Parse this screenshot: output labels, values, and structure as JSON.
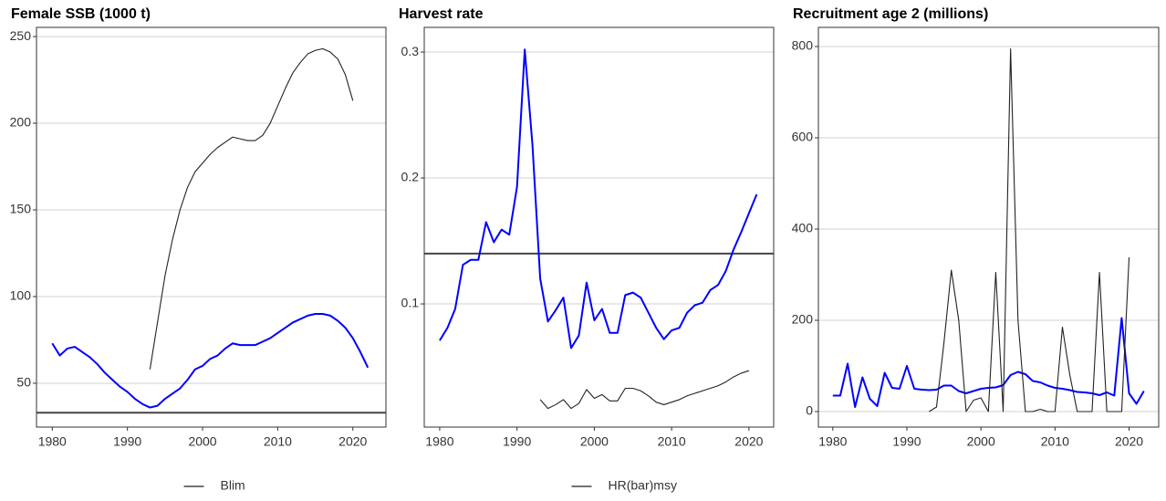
{
  "chart_data": [
    {
      "type": "line",
      "title": "Female SSB (1000 t)",
      "xlim": [
        1977.9,
        2024.4
      ],
      "xticks": [
        1980,
        1990,
        2000,
        2010,
        2020
      ],
      "ylim": [
        24.7,
        255.3
      ],
      "yticks": [
        50,
        100,
        150,
        200,
        250
      ],
      "grid": true,
      "series": [
        {
          "color": "#0000ff",
          "x": [
            1980,
            1981,
            1982,
            1983,
            1984,
            1985,
            1986,
            1987,
            1988,
            1989,
            1990,
            1991,
            1992,
            1993,
            1994,
            1995,
            1996,
            1997,
            1998,
            1999,
            2000,
            2001,
            2002,
            2003,
            2004,
            2005,
            2006,
            2007,
            2008,
            2009,
            2010,
            2011,
            2012,
            2013,
            2014,
            2015,
            2016,
            2017,
            2018,
            2019,
            2020,
            2021,
            2022
          ],
          "values": [
            73,
            66,
            70,
            71,
            68,
            65,
            61,
            56,
            52,
            48,
            45,
            41,
            38,
            36,
            37,
            41,
            44,
            47,
            52,
            58,
            60,
            64,
            66,
            70,
            73,
            72,
            72,
            72,
            74,
            76,
            79,
            82,
            85,
            87,
            89,
            90,
            90,
            89,
            86,
            82,
            76,
            68,
            59
          ]
        },
        {
          "color": "#222222",
          "x": [
            1993,
            1994,
            1995,
            1996,
            1997,
            1998,
            1999,
            2000,
            2001,
            2002,
            2003,
            2004,
            2005,
            2006,
            2007,
            2008,
            2009,
            2010,
            2011,
            2012,
            2013,
            2014,
            2015,
            2016,
            2017,
            2018,
            2019,
            2020
          ],
          "values": [
            58,
            85,
            112,
            133,
            150,
            163,
            172,
            177,
            182,
            186,
            189,
            192,
            191,
            190,
            190,
            193,
            200,
            210,
            220,
            229,
            235,
            240,
            242,
            243,
            241,
            237,
            228,
            213
          ]
        }
      ],
      "hline": {
        "name": "Blim",
        "value": 33,
        "color": "#444444"
      }
    },
    {
      "type": "line",
      "title": "Harvest rate",
      "xlim": [
        1978.0,
        2023.2
      ],
      "xticks": [
        1980,
        1990,
        2000,
        2010,
        2020
      ],
      "ylim": [
        0.0022,
        0.3196
      ],
      "yticks": [
        0.1,
        0.2,
        0.3
      ],
      "grid": true,
      "series": [
        {
          "color": "#0000ff",
          "x": [
            1980,
            1981,
            1982,
            1983,
            1984,
            1985,
            1986,
            1987,
            1988,
            1989,
            1990,
            1991,
            1992,
            1993,
            1994,
            1995,
            1996,
            1997,
            1998,
            1999,
            2000,
            2001,
            2002,
            2003,
            2004,
            2005,
            2006,
            2007,
            2008,
            2009,
            2010,
            2011,
            2012,
            2013,
            2014,
            2015,
            2016,
            2017,
            2018,
            2019,
            2020,
            2021
          ],
          "values": [
            0.071,
            0.081,
            0.096,
            0.131,
            0.135,
            0.135,
            0.165,
            0.149,
            0.159,
            0.155,
            0.193,
            0.302,
            0.226,
            0.12,
            0.086,
            0.095,
            0.105,
            0.065,
            0.075,
            0.117,
            0.087,
            0.096,
            0.077,
            0.077,
            0.107,
            0.109,
            0.105,
            0.093,
            0.081,
            0.072,
            0.079,
            0.081,
            0.093,
            0.099,
            0.101,
            0.111,
            0.115,
            0.126,
            0.143,
            0.157,
            0.172,
            0.187
          ]
        },
        {
          "color": "#222222",
          "x": [
            1993,
            1994,
            1995,
            1996,
            1997,
            1998,
            1999,
            2000,
            2001,
            2002,
            2003,
            2004,
            2005,
            2006,
            2007,
            2008,
            2009,
            2010,
            2011,
            2012,
            2013,
            2014,
            2015,
            2016,
            2017,
            2018,
            2019,
            2020
          ],
          "values": [
            0.024,
            0.017,
            0.02,
            0.024,
            0.017,
            0.021,
            0.032,
            0.025,
            0.028,
            0.023,
            0.023,
            0.033,
            0.033,
            0.031,
            0.027,
            0.022,
            0.02,
            0.022,
            0.024,
            0.027,
            0.029,
            0.031,
            0.033,
            0.035,
            0.038,
            0.042,
            0.045,
            0.047
          ]
        }
      ],
      "hline": {
        "name": "HR(bar)msy",
        "value": 0.14,
        "color": "#444444"
      }
    },
    {
      "type": "line",
      "title": "Recruitment age 2 (millions)",
      "xlim": [
        1978.05,
        2024.0
      ],
      "xticks": [
        1980,
        1990,
        2000,
        2010,
        2020
      ],
      "ylim": [
        -34,
        842
      ],
      "yticks": [
        0,
        200,
        400,
        600,
        800
      ],
      "grid": true,
      "series": [
        {
          "color": "#0000ff",
          "x": [
            1980,
            1981,
            1982,
            1983,
            1984,
            1985,
            1986,
            1987,
            1988,
            1989,
            1990,
            1991,
            1992,
            1993,
            1994,
            1995,
            1996,
            1997,
            1998,
            1999,
            2000,
            2001,
            2002,
            2003,
            2004,
            2005,
            2006,
            2007,
            2008,
            2009,
            2010,
            2011,
            2012,
            2013,
            2014,
            2015,
            2016,
            2017,
            2018,
            2019,
            2020,
            2021,
            2022
          ],
          "values": [
            35,
            35,
            105,
            10,
            75,
            28,
            12,
            85,
            52,
            50,
            100,
            50,
            48,
            47,
            48,
            57,
            57,
            45,
            40,
            45,
            50,
            52,
            53,
            58,
            80,
            87,
            82,
            67,
            64,
            57,
            52,
            50,
            47,
            43,
            42,
            40,
            36,
            42,
            35,
            205,
            40,
            17,
            45
          ]
        },
        {
          "color": "#222222",
          "x": [
            1993,
            1994,
            1995,
            1996,
            1997,
            1998,
            1999,
            2000,
            2001,
            2002,
            2003,
            2004,
            2005,
            2006,
            2007,
            2008,
            2009,
            2010,
            2011,
            2012,
            2013,
            2014,
            2015,
            2016,
            2017,
            2018,
            2019,
            2020
          ],
          "values": [
            0,
            10,
            150,
            310,
            200,
            0,
            25,
            30,
            0,
            305,
            0,
            795,
            200,
            0,
            0,
            5,
            0,
            0,
            185,
            80,
            0,
            0,
            0,
            305,
            0,
            0,
            0,
            338
          ]
        }
      ]
    }
  ]
}
